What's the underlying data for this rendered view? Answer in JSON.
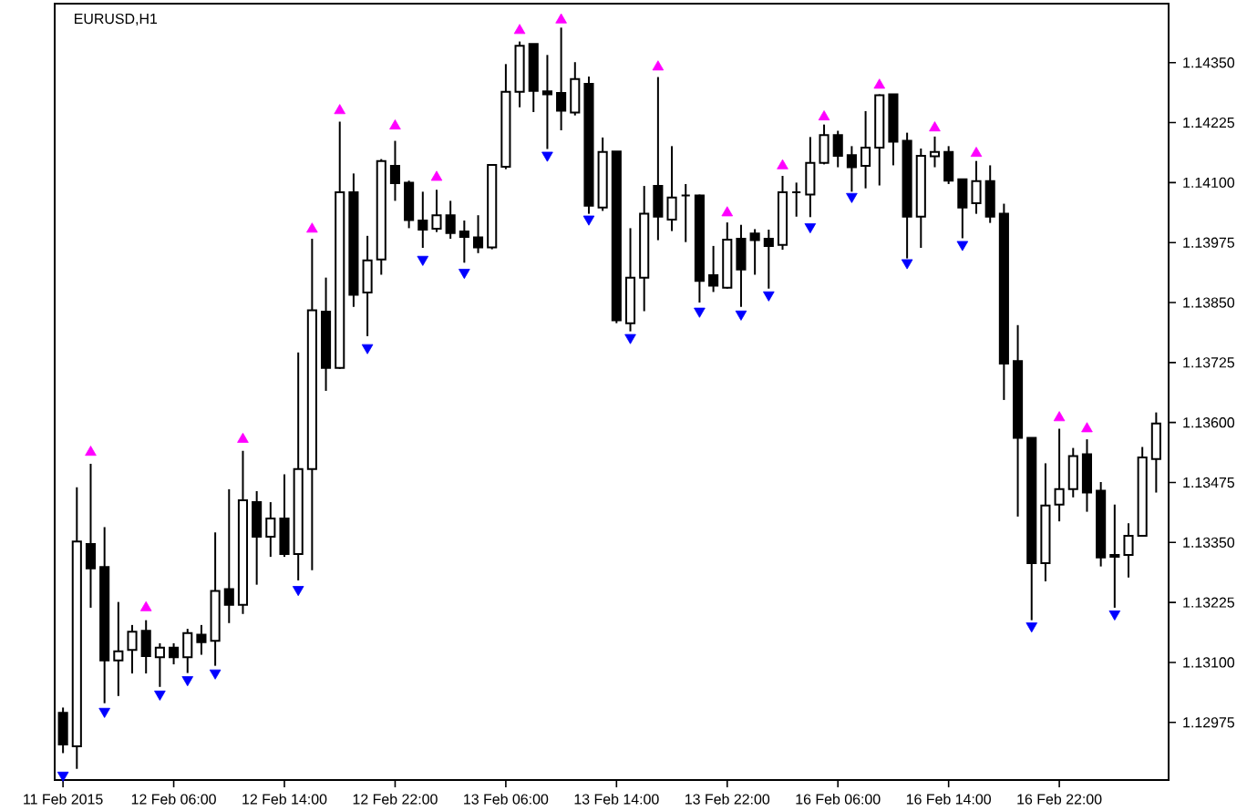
{
  "chart_data": {
    "type": "candlestick",
    "title": "EURUSD,H1",
    "color": "#000000",
    "categories": [
      "11 Feb 2015",
      null,
      null,
      null,
      null,
      null,
      null,
      null,
      "12 Feb 06:00",
      null,
      null,
      null,
      null,
      null,
      null,
      null,
      "12 Feb 14:00",
      null,
      null,
      null,
      null,
      null,
      null,
      null,
      "12 Feb 22:00",
      null,
      null,
      null,
      null,
      null,
      null,
      null,
      "13 Feb 06:00",
      null,
      null,
      null,
      null,
      null,
      null,
      null,
      "13 Feb 14:00",
      null,
      null,
      null,
      null,
      null,
      null,
      null,
      "13 Feb 22:00",
      null,
      null,
      null,
      null,
      null,
      null,
      null,
      "16 Feb 06:00",
      null,
      null,
      null,
      null,
      null,
      null,
      null,
      "16 Feb 14:00",
      null,
      null,
      null,
      null,
      null,
      null,
      null,
      "16 Feb 22:00",
      null,
      null,
      null,
      null,
      null,
      null,
      null
    ],
    "ohlc": [
      [
        1.12995,
        1.13006,
        1.12911,
        1.12929
      ],
      [
        1.12925,
        1.13465,
        1.12878,
        1.13352
      ],
      [
        1.13347,
        1.13514,
        1.13214,
        1.13296
      ],
      [
        1.13299,
        1.13382,
        1.13015,
        1.13104
      ],
      [
        1.13104,
        1.13226,
        1.1303,
        1.13123
      ],
      [
        1.13126,
        1.13178,
        1.13077,
        1.13164
      ],
      [
        1.13166,
        1.13188,
        1.13077,
        1.13113
      ],
      [
        1.13111,
        1.1314,
        1.13049,
        1.13131
      ],
      [
        1.13131,
        1.1314,
        1.13096,
        1.13111
      ],
      [
        1.13111,
        1.1317,
        1.13078,
        1.13161
      ],
      [
        1.13158,
        1.13178,
        1.13116,
        1.13142
      ],
      [
        1.13145,
        1.13371,
        1.13093,
        1.13249
      ],
      [
        1.13253,
        1.13461,
        1.13182,
        1.1322
      ],
      [
        1.1322,
        1.13541,
        1.13201,
        1.13438
      ],
      [
        1.13434,
        1.13457,
        1.13262,
        1.13362
      ],
      [
        1.13362,
        1.13434,
        1.1332,
        1.134
      ],
      [
        1.134,
        1.13492,
        1.1332,
        1.13326
      ],
      [
        1.13326,
        1.13746,
        1.13271,
        1.13503
      ],
      [
        1.13503,
        1.13983,
        1.13292,
        1.13834
      ],
      [
        1.13831,
        1.13902,
        1.13666,
        1.13714
      ],
      [
        1.13714,
        1.14227,
        1.13712,
        1.1408
      ],
      [
        1.1408,
        1.14119,
        1.13841,
        1.13866
      ],
      [
        1.13871,
        1.13989,
        1.1378,
        1.13938
      ],
      [
        1.1394,
        1.14149,
        1.13908,
        1.14145
      ],
      [
        1.14135,
        1.14187,
        1.14062,
        1.14099
      ],
      [
        1.141,
        1.14104,
        1.14005,
        1.14022
      ],
      [
        1.14021,
        1.14081,
        1.13964,
        1.14002
      ],
      [
        1.14004,
        1.14085,
        1.13997,
        1.14032
      ],
      [
        1.14032,
        1.14062,
        1.13983,
        1.13995
      ],
      [
        1.13998,
        1.14021,
        1.13933,
        1.13987
      ],
      [
        1.13986,
        1.14032,
        1.13953,
        1.13965
      ],
      [
        1.13965,
        1.14137,
        1.13961,
        1.14137
      ],
      [
        1.14133,
        1.14347,
        1.14128,
        1.14289
      ],
      [
        1.14289,
        1.14394,
        1.14257,
        1.14385
      ],
      [
        1.14389,
        1.14389,
        1.14247,
        1.14291
      ],
      [
        1.1429,
        1.14366,
        1.1417,
        1.14284
      ],
      [
        1.14287,
        1.14423,
        1.14209,
        1.1425
      ],
      [
        1.14246,
        1.14351,
        1.1424,
        1.14316
      ],
      [
        1.14306,
        1.14321,
        1.14035,
        1.14052
      ],
      [
        1.14048,
        1.14194,
        1.14041,
        1.14164
      ],
      [
        1.14165,
        1.14165,
        1.13807,
        1.13813
      ],
      [
        1.13807,
        1.14005,
        1.1379,
        1.13902
      ],
      [
        1.13902,
        1.14093,
        1.13832,
        1.14035
      ],
      [
        1.14093,
        1.1432,
        1.1398,
        1.14029
      ],
      [
        1.14023,
        1.14176,
        1.13999,
        1.14069
      ],
      [
        1.14073,
        1.14097,
        1.13976,
        1.14073
      ],
      [
        1.14073,
        1.14075,
        1.1385,
        1.13895
      ],
      [
        1.13907,
        1.13968,
        1.13872,
        1.13885
      ],
      [
        1.13881,
        1.14017,
        1.13879,
        1.13981
      ],
      [
        1.13983,
        1.14012,
        1.13841,
        1.13919
      ],
      [
        1.13994,
        1.14003,
        1.13908,
        1.1398
      ],
      [
        1.13983,
        1.14002,
        1.13879,
        1.13968
      ],
      [
        1.1397,
        1.14114,
        1.1396,
        1.1408
      ],
      [
        1.1408,
        1.141,
        1.14029,
        1.1408
      ],
      [
        1.14075,
        1.14195,
        1.14028,
        1.14141
      ],
      [
        1.14141,
        1.14221,
        1.14138,
        1.14199
      ],
      [
        1.14199,
        1.14208,
        1.14132,
        1.14156
      ],
      [
        1.14157,
        1.14176,
        1.14081,
        1.14132
      ],
      [
        1.14135,
        1.14249,
        1.14088,
        1.14173
      ],
      [
        1.14173,
        1.14284,
        1.14094,
        1.14282
      ],
      [
        1.14284,
        1.14284,
        1.14136,
        1.14185
      ],
      [
        1.14187,
        1.14204,
        1.13942,
        1.14029
      ],
      [
        1.14029,
        1.14171,
        1.13964,
        1.14156
      ],
      [
        1.14155,
        1.14196,
        1.14132,
        1.14164
      ],
      [
        1.14164,
        1.14176,
        1.14097,
        1.14104
      ],
      [
        1.14107,
        1.14107,
        1.13984,
        1.14048
      ],
      [
        1.14057,
        1.14145,
        1.14035,
        1.14103
      ],
      [
        1.14103,
        1.14136,
        1.14016,
        1.14029
      ],
      [
        1.14035,
        1.14056,
        1.13647,
        1.13723
      ],
      [
        1.13728,
        1.13803,
        1.13404,
        1.13568
      ],
      [
        1.13568,
        1.13568,
        1.13188,
        1.13307
      ],
      [
        1.13307,
        1.13515,
        1.13269,
        1.13427
      ],
      [
        1.13429,
        1.13587,
        1.13394,
        1.13461
      ],
      [
        1.13461,
        1.13547,
        1.13444,
        1.1353
      ],
      [
        1.13534,
        1.13565,
        1.13414,
        1.13454
      ],
      [
        1.13458,
        1.13476,
        1.133,
        1.13319
      ],
      [
        1.13324,
        1.13429,
        1.13214,
        1.1332
      ],
      [
        1.13324,
        1.1339,
        1.13277,
        1.13364
      ],
      [
        1.13364,
        1.13549,
        1.13364,
        1.13527
      ],
      [
        1.13524,
        1.13621,
        1.13454,
        1.13598
      ]
    ],
    "series": [
      {
        "type": "scatter",
        "color": "#ff00ff",
        "marker": "triangle",
        "values": [
          null,
          null,
          1.13538,
          null,
          null,
          null,
          1.13214,
          null,
          null,
          null,
          null,
          null,
          null,
          1.13565,
          null,
          null,
          null,
          null,
          1.14003,
          null,
          1.1425,
          null,
          null,
          null,
          1.14218,
          null,
          null,
          1.14111,
          null,
          null,
          null,
          null,
          null,
          1.14417,
          null,
          null,
          1.14439,
          null,
          null,
          null,
          null,
          null,
          null,
          1.14341,
          null,
          null,
          null,
          null,
          1.14037,
          null,
          null,
          null,
          1.14135,
          null,
          null,
          1.14237,
          null,
          null,
          null,
          1.14303,
          null,
          null,
          null,
          1.14214,
          null,
          null,
          1.14161,
          null,
          null,
          null,
          null,
          null,
          1.1361,
          null,
          1.13587,
          null,
          null,
          null,
          null,
          null
        ]
      },
      {
        "type": "scatter",
        "color": "#0000ff",
        "marker": "triangle",
        "values": [
          1.12865,
          null,
          null,
          1.12998,
          null,
          null,
          null,
          1.13034,
          null,
          1.13064,
          null,
          1.13078,
          null,
          null,
          null,
          null,
          null,
          1.13252,
          null,
          null,
          null,
          null,
          1.13756,
          null,
          null,
          null,
          1.1394,
          null,
          null,
          1.13913,
          null,
          null,
          null,
          null,
          null,
          1.14157,
          null,
          null,
          1.14024,
          null,
          null,
          1.13777,
          null,
          null,
          null,
          null,
          1.13832,
          null,
          null,
          1.13826,
          null,
          1.13866,
          null,
          null,
          1.14008,
          null,
          null,
          1.14071,
          null,
          null,
          null,
          1.13933,
          null,
          null,
          null,
          1.13971,
          null,
          null,
          null,
          null,
          1.13176,
          null,
          null,
          null,
          null,
          null,
          1.13201,
          null,
          null,
          null
        ]
      }
    ],
    "ylim": [
      1.12855,
      1.14473
    ],
    "yticks": [
      {
        "value": 1.12975,
        "label": "1.12975"
      },
      {
        "value": 1.131,
        "label": "1.13100"
      },
      {
        "value": 1.13225,
        "label": "1.13225"
      },
      {
        "value": 1.1335,
        "label": "1.13350"
      },
      {
        "value": 1.13475,
        "label": "1.13475"
      },
      {
        "value": 1.136,
        "label": "1.13600"
      },
      {
        "value": 1.13725,
        "label": "1.13725"
      },
      {
        "value": 1.1385,
        "label": "1.13850"
      },
      {
        "value": 1.13975,
        "label": "1.13975"
      },
      {
        "value": 1.141,
        "label": "1.14100"
      },
      {
        "value": 1.14225,
        "label": "1.14225"
      },
      {
        "value": 1.1435,
        "label": "1.14350"
      }
    ]
  }
}
